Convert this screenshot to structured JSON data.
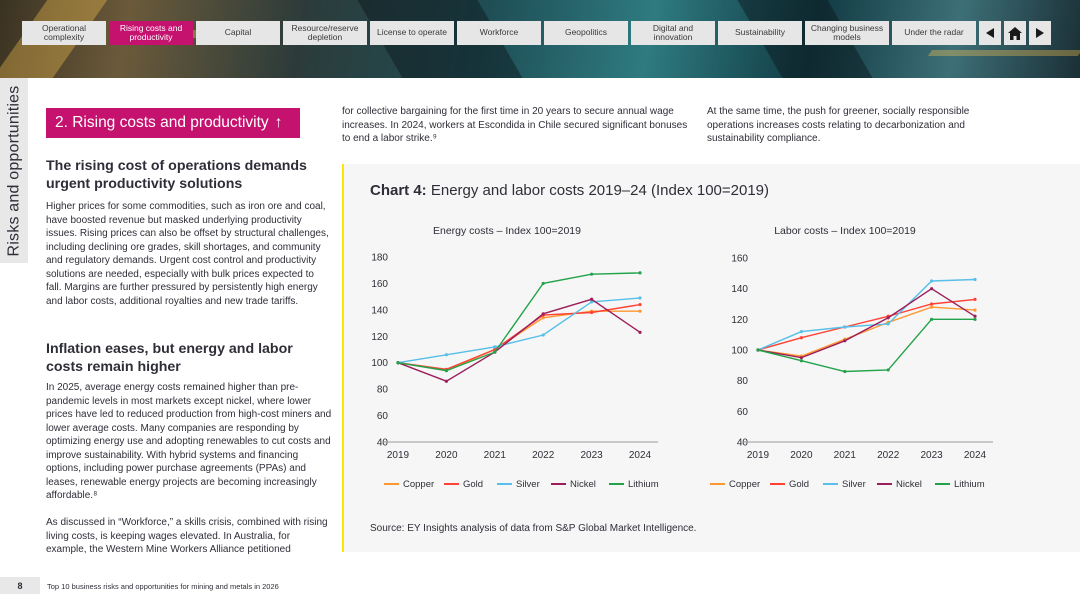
{
  "nav": {
    "tabs": [
      "Operational complexity",
      "Rising costs and productivity",
      "Capital",
      "Resource/reserve depletion",
      "License to operate",
      "Workforce",
      "Geopolitics",
      "Digital and innovation",
      "Sustainability",
      "Changing business models",
      "Under the radar"
    ],
    "active_index": 1,
    "prev_icon": "prev-arrow-icon",
    "home_icon": "home-icon",
    "next_icon": "next-arrow-icon"
  },
  "side_label": "Risks and opportunities",
  "section_title": "2. Rising costs and productivity",
  "section_arrow": "↑",
  "left": {
    "heading1": "The rising cost of operations demands urgent productivity solutions",
    "para1": "Higher prices for some commodities, such as iron ore and coal, have boosted revenue but masked underlying productivity issues. Rising prices can also be offset by structural challenges, including declining ore grades, skill shortages, and community and regulatory demands. Urgent cost control and productivity solutions are needed, especially with bulk prices expected to fall. Margins are further pressured by persistently high energy and labor costs, additional royalties and new trade tariffs.",
    "heading2": "Inflation eases, but energy and labor costs remain higher",
    "para2": "In 2025, average energy costs remained higher than pre-pandemic levels in most markets except nickel, where lower prices have led to reduced production from high-cost miners and lower average costs. Many companies are responding by optimizing energy use and adopting renewables to cut costs and improve sustainability. With hybrid systems and financing options, including power purchase agreements (PPAs) and leases, renewable energy projects are becoming increasingly affordable.⁸",
    "para3": "As discussed in “Workforce,” a skills crisis, combined with rising living costs, is keeping wages elevated. In Australia, for example, the Western Mine Workers Alliance petitioned"
  },
  "mid_text": "for collective bargaining for the first time in 20 years to secure annual wage increases. In 2024, workers at Escondida in Chile secured significant bonuses to end a labor strike.⁹",
  "right_text": "At the same time, the push for greener, socially responsible operations increases costs relating to decarbonization and sustainability compliance.",
  "chart_heading_bold": "Chart 4:",
  "chart_heading_rest": " Energy and labor costs 2019–24 (Index 100=2019)",
  "chart_data": [
    {
      "type": "line",
      "title": "Energy costs – Index 100=2019",
      "x": [
        "2019",
        "2020",
        "2021",
        "2022",
        "2023",
        "2024"
      ],
      "ylim": [
        40,
        180
      ],
      "yticks": [
        40,
        60,
        80,
        100,
        120,
        140,
        160,
        180
      ],
      "series": [
        {
          "name": "Copper",
          "color": "#ff9831",
          "values": [
            100,
            94,
            110,
            134,
            139,
            139
          ]
        },
        {
          "name": "Gold",
          "color": "#ff4136",
          "values": [
            100,
            95,
            110,
            136,
            138,
            144
          ]
        },
        {
          "name": "Silver",
          "color": "#57bfe8",
          "values": [
            100,
            106,
            112,
            121,
            146,
            149
          ]
        },
        {
          "name": "Nickel",
          "color": "#9c1f5b",
          "values": [
            100,
            86,
            108,
            137,
            148,
            123
          ]
        },
        {
          "name": "Lithium",
          "color": "#22a34a",
          "values": [
            100,
            94,
            108,
            160,
            167,
            168
          ]
        }
      ]
    },
    {
      "type": "line",
      "title": "Labor costs – Index 100=2019",
      "x": [
        "2019",
        "2020",
        "2021",
        "2022",
        "2023",
        "2024"
      ],
      "ylim": [
        40,
        160
      ],
      "yticks": [
        40,
        60,
        80,
        100,
        120,
        140,
        160
      ],
      "series": [
        {
          "name": "Copper",
          "color": "#ff9831",
          "values": [
            100,
            96,
            107,
            118,
            128,
            126
          ]
        },
        {
          "name": "Gold",
          "color": "#ff4136",
          "values": [
            100,
            108,
            115,
            122,
            130,
            133
          ]
        },
        {
          "name": "Silver",
          "color": "#57bfe8",
          "values": [
            100,
            112,
            115,
            117,
            145,
            146
          ]
        },
        {
          "name": "Nickel",
          "color": "#9c1f5b",
          "values": [
            100,
            95,
            106,
            121,
            140,
            122
          ]
        },
        {
          "name": "Lithium",
          "color": "#22a34a",
          "values": [
            100,
            93,
            86,
            87,
            120,
            120
          ]
        }
      ]
    }
  ],
  "source": "Source: EY Insights analysis of data from S&P Global Market Intelligence.",
  "footer": {
    "page": "8",
    "title": "Top 10 business risks and opportunities for mining and metals in 2026"
  }
}
